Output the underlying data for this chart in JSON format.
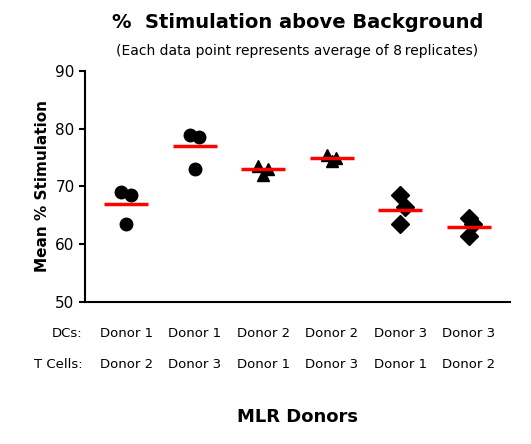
{
  "title": "%  Stimulation above Background",
  "subtitle": "(Each data point represents average of 8 replicates)",
  "ylabel": "Mean % Stimulation",
  "xlabel": "MLR Donors",
  "ylim": [
    50,
    90
  ],
  "yticks": [
    50,
    60,
    70,
    80,
    90
  ],
  "groups": [
    {
      "label_dc": "Donor 1",
      "label_tc": "Donor 2",
      "x": 1,
      "points": [
        69.0,
        68.5,
        63.5
      ],
      "point_offsets": [
        -0.07,
        0.07,
        0.0
      ],
      "mean": 67.0,
      "marker": "o"
    },
    {
      "label_dc": "Donor 1",
      "label_tc": "Donor 3",
      "x": 2,
      "points": [
        79.0,
        78.5,
        73.0
      ],
      "point_offsets": [
        -0.07,
        0.07,
        0.0
      ],
      "mean": 77.0,
      "marker": "o"
    },
    {
      "label_dc": "Donor 2",
      "label_tc": "Donor 1",
      "x": 3,
      "points": [
        73.5,
        73.0,
        72.0
      ],
      "point_offsets": [
        -0.07,
        0.07,
        0.0
      ],
      "mean": 73.0,
      "marker": "^"
    },
    {
      "label_dc": "Donor 2",
      "label_tc": "Donor 3",
      "x": 4,
      "points": [
        75.5,
        75.0,
        74.5
      ],
      "point_offsets": [
        -0.07,
        0.07,
        0.0
      ],
      "mean": 75.0,
      "marker": "^"
    },
    {
      "label_dc": "Donor 3",
      "label_tc": "Donor 1",
      "x": 5,
      "points": [
        68.5,
        66.5,
        63.5
      ],
      "point_offsets": [
        -0.0,
        0.07,
        0.0
      ],
      "mean": 66.0,
      "marker": "D"
    },
    {
      "label_dc": "Donor 3",
      "label_tc": "Donor 2",
      "x": 6,
      "points": [
        64.5,
        63.5,
        61.5
      ],
      "point_offsets": [
        -0.0,
        0.07,
        0.0
      ],
      "mean": 63.0,
      "marker": "D"
    }
  ],
  "point_color": "#000000",
  "mean_color": "#ff0000",
  "mean_linewidth": 2.5,
  "mean_line_halfwidth": 0.32,
  "marker_size": 9,
  "background_color": "#ffffff",
  "border_color": "#000000",
  "title_fontsize": 14,
  "subtitle_fontsize": 10,
  "ylabel_fontsize": 11,
  "xlabel_fontsize": 13,
  "tick_fontsize": 11,
  "xtick_label_fontsize": 9.5,
  "dc_label": "DCs:",
  "tc_label": "T Cells:"
}
